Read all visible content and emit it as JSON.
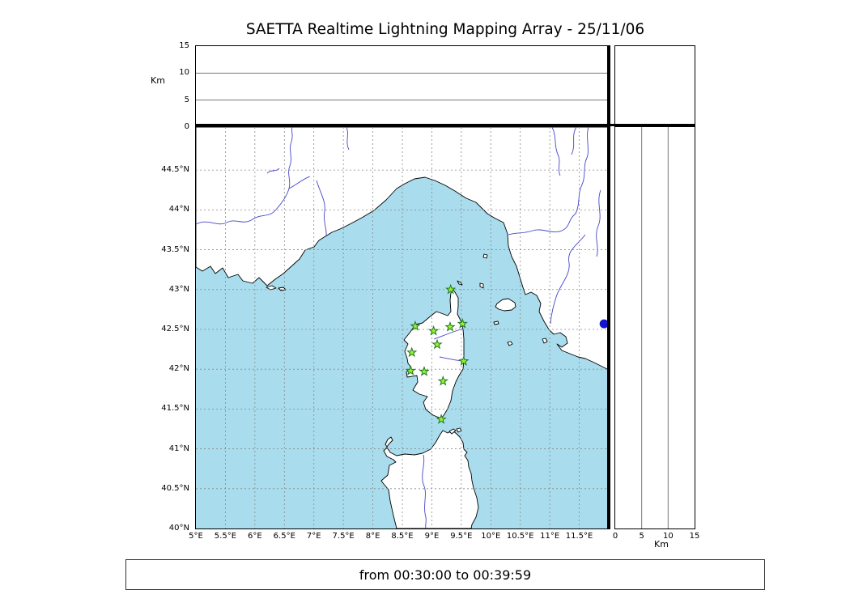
{
  "title": "SAETTA Realtime Lightning Mapping Array - 25/11/06",
  "time_range": "from 00:30:00 to 00:39:59",
  "altitude_axis": {
    "label": "Km",
    "ticks": [
      0,
      5,
      10,
      15
    ],
    "max": 15
  },
  "map": {
    "lon_min": 5,
    "lon_max": 12,
    "lat_min": 40,
    "lat_top": 45.04,
    "lon_ticks": [
      {
        "v": 5,
        "label": "5°E"
      },
      {
        "v": 5.5,
        "label": "5.5°E"
      },
      {
        "v": 6,
        "label": "6°E"
      },
      {
        "v": 6.5,
        "label": "6.5°E"
      },
      {
        "v": 7,
        "label": "7°E"
      },
      {
        "v": 7.5,
        "label": "7.5°E"
      },
      {
        "v": 8,
        "label": "8°E"
      },
      {
        "v": 8.5,
        "label": "8.5°E"
      },
      {
        "v": 9,
        "label": "9°E"
      },
      {
        "v": 9.5,
        "label": "9.5°E"
      },
      {
        "v": 10,
        "label": "10°E"
      },
      {
        "v": 10.5,
        "label": "10.5°E"
      },
      {
        "v": 11,
        "label": "11°E"
      },
      {
        "v": 11.5,
        "label": "11.5°E"
      }
    ],
    "lat_ticks": [
      {
        "v": 40,
        "label": "40°N"
      },
      {
        "v": 40.5,
        "label": "40.5°N"
      },
      {
        "v": 41,
        "label": "41°N"
      },
      {
        "v": 41.5,
        "label": "41.5°N"
      },
      {
        "v": 42,
        "label": "42°N"
      },
      {
        "v": 42.5,
        "label": "42.5°N"
      },
      {
        "v": 43,
        "label": "43°N"
      },
      {
        "v": 43.5,
        "label": "43.5°N"
      },
      {
        "v": 44,
        "label": "44°N"
      },
      {
        "v": 44.5,
        "label": "44.5°N"
      }
    ]
  },
  "stations": [
    {
      "lon": 9.32,
      "lat": 43.0
    },
    {
      "lon": 8.72,
      "lat": 42.54
    },
    {
      "lon": 9.03,
      "lat": 42.48
    },
    {
      "lon": 9.31,
      "lat": 42.53
    },
    {
      "lon": 9.52,
      "lat": 42.57
    },
    {
      "lon": 9.09,
      "lat": 42.31
    },
    {
      "lon": 8.66,
      "lat": 42.21
    },
    {
      "lon": 9.54,
      "lat": 42.1
    },
    {
      "lon": 8.64,
      "lat": 41.98
    },
    {
      "lon": 8.87,
      "lat": 41.97
    },
    {
      "lon": 9.19,
      "lat": 41.85
    },
    {
      "lon": 9.16,
      "lat": 41.37
    }
  ],
  "lake": {
    "lon": 11.92,
    "lat": 42.57
  },
  "colors": {
    "sea": "#a9dcec",
    "land": "#ffffff",
    "coast": "#000000",
    "grid": "#8a8a8a",
    "river": "#4646cc",
    "station_fill": "#9bf233",
    "station_stroke": "#1f7a1f",
    "lake": "#1414cc"
  }
}
